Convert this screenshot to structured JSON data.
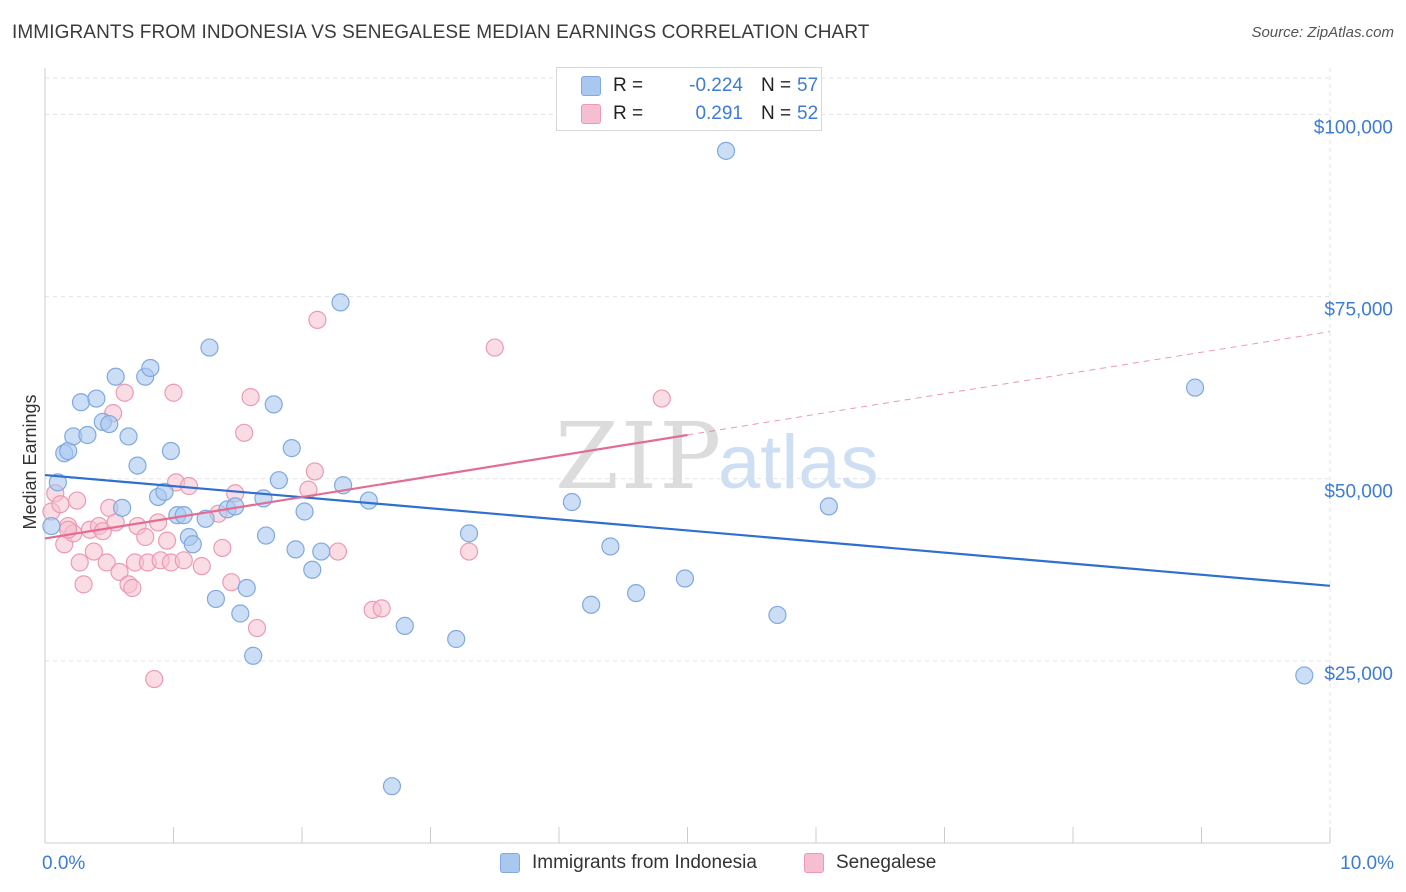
{
  "title": "IMMIGRANTS FROM INDONESIA VS SENEGALESE MEDIAN EARNINGS CORRELATION CHART",
  "source": "Source: ZipAtlas.com",
  "watermark": {
    "zip": "ZIP",
    "atlas": "atlas"
  },
  "colors": {
    "blue_fill": "#a9c8f0",
    "blue_stroke": "#7fa9e0",
    "blue_line": "#2f6fcf",
    "pink_fill": "#f6bfd0",
    "pink_stroke": "#ec9ab3",
    "pink_line": "#e36d92",
    "accent_text": "#3d7bd6",
    "grid": "#e3e3e3"
  },
  "legend_top": {
    "rows": [
      {
        "r_label": "R =",
        "r_value": "-0.224",
        "n_label": "N =",
        "n_value": "57"
      },
      {
        "r_label": "R =",
        "r_value": "0.291",
        "n_label": "N =",
        "n_value": "52"
      }
    ]
  },
  "legend_bottom": [
    "Immigrants from Indonesia",
    "Senegalese"
  ],
  "chart_data": {
    "type": "scatter",
    "title": "IMMIGRANTS FROM INDONESIA VS SENEGALESE MEDIAN EARNINGS CORRELATION CHART",
    "xlabel": "",
    "ylabel": "Median Earnings",
    "xlim": [
      0,
      10
    ],
    "ylim": [
      0,
      105000
    ],
    "x_tick_labels": [
      "0.0%",
      "10.0%"
    ],
    "y_ticks": [
      25000,
      50000,
      75000,
      100000
    ],
    "y_tick_labels": [
      "$25,000",
      "$50,000",
      "$75,000",
      "$100,000"
    ],
    "grid": true,
    "legend_position": "top-center",
    "series": [
      {
        "name": "Immigrants from Indonesia",
        "color": "#a9c8f0",
        "points": [
          [
            0.05,
            43500
          ],
          [
            0.1,
            49500
          ],
          [
            0.15,
            53500
          ],
          [
            0.18,
            53800
          ],
          [
            0.22,
            55800
          ],
          [
            0.28,
            60500
          ],
          [
            0.33,
            56000
          ],
          [
            0.4,
            61000
          ],
          [
            0.45,
            57800
          ],
          [
            0.5,
            57500
          ],
          [
            0.55,
            64000
          ],
          [
            0.6,
            46000
          ],
          [
            0.65,
            55800
          ],
          [
            0.72,
            51800
          ],
          [
            0.78,
            64000
          ],
          [
            0.82,
            65200
          ],
          [
            0.88,
            47500
          ],
          [
            0.93,
            48200
          ],
          [
            0.98,
            53800
          ],
          [
            1.03,
            45000
          ],
          [
            1.08,
            45000
          ],
          [
            1.12,
            42000
          ],
          [
            1.15,
            41000
          ],
          [
            1.25,
            44500
          ],
          [
            1.28,
            68000
          ],
          [
            1.33,
            33500
          ],
          [
            1.42,
            45800
          ],
          [
            1.48,
            46200
          ],
          [
            1.52,
            31500
          ],
          [
            1.57,
            35000
          ],
          [
            1.62,
            25700
          ],
          [
            1.7,
            47300
          ],
          [
            1.72,
            42200
          ],
          [
            1.78,
            60200
          ],
          [
            1.82,
            49800
          ],
          [
            1.92,
            54200
          ],
          [
            1.95,
            40300
          ],
          [
            2.02,
            45500
          ],
          [
            2.08,
            37500
          ],
          [
            2.15,
            40000
          ],
          [
            2.3,
            74200
          ],
          [
            2.32,
            49100
          ],
          [
            2.52,
            47000
          ],
          [
            2.7,
            7800
          ],
          [
            2.8,
            29800
          ],
          [
            3.2,
            28000
          ],
          [
            3.3,
            42500
          ],
          [
            4.1,
            46800
          ],
          [
            4.25,
            32700
          ],
          [
            4.4,
            40700
          ],
          [
            4.6,
            34300
          ],
          [
            4.98,
            36300
          ],
          [
            5.3,
            95000
          ],
          [
            5.7,
            31300
          ],
          [
            6.1,
            46200
          ],
          [
            8.95,
            62500
          ],
          [
            9.8,
            23000
          ]
        ]
      },
      {
        "name": "Senegalese",
        "color": "#f6bfd0",
        "points": [
          [
            0.05,
            45500
          ],
          [
            0.08,
            48000
          ],
          [
            0.12,
            46500
          ],
          [
            0.15,
            41000
          ],
          [
            0.18,
            43500
          ],
          [
            0.22,
            42500
          ],
          [
            0.25,
            47000
          ],
          [
            0.27,
            38500
          ],
          [
            0.3,
            35500
          ],
          [
            0.35,
            43000
          ],
          [
            0.38,
            40000
          ],
          [
            0.42,
            43500
          ],
          [
            0.45,
            42800
          ],
          [
            0.48,
            38500
          ],
          [
            0.5,
            46000
          ],
          [
            0.53,
            59000
          ],
          [
            0.55,
            44000
          ],
          [
            0.58,
            37200
          ],
          [
            0.62,
            61800
          ],
          [
            0.65,
            35500
          ],
          [
            0.68,
            35000
          ],
          [
            0.7,
            38500
          ],
          [
            0.72,
            43500
          ],
          [
            0.78,
            42000
          ],
          [
            0.8,
            38500
          ],
          [
            0.85,
            22500
          ],
          [
            0.88,
            44000
          ],
          [
            0.9,
            38800
          ],
          [
            0.95,
            41500
          ],
          [
            0.98,
            38500
          ],
          [
            1.0,
            61800
          ],
          [
            1.02,
            49500
          ],
          [
            1.08,
            38800
          ],
          [
            1.12,
            49000
          ],
          [
            1.22,
            38000
          ],
          [
            1.35,
            45200
          ],
          [
            1.38,
            40500
          ],
          [
            1.45,
            35800
          ],
          [
            1.48,
            48000
          ],
          [
            1.55,
            56300
          ],
          [
            1.6,
            61200
          ],
          [
            1.65,
            29500
          ],
          [
            2.05,
            48500
          ],
          [
            2.1,
            51000
          ],
          [
            2.12,
            71800
          ],
          [
            2.28,
            40000
          ],
          [
            2.55,
            32000
          ],
          [
            2.62,
            32200
          ],
          [
            3.3,
            40000
          ],
          [
            3.5,
            68000
          ],
          [
            4.8,
            61000
          ],
          [
            0.18,
            43000
          ]
        ]
      }
    ],
    "trendlines": [
      {
        "series": "Immigrants from Indonesia",
        "x": [
          0,
          10
        ],
        "y": [
          50500,
          35300
        ]
      },
      {
        "series": "Senegalese",
        "x": [
          0,
          5
        ],
        "y": [
          41800,
          56000
        ],
        "dashed_extension": {
          "x": [
            5,
            10
          ],
          "y": [
            56000,
            70200
          ]
        }
      }
    ]
  }
}
